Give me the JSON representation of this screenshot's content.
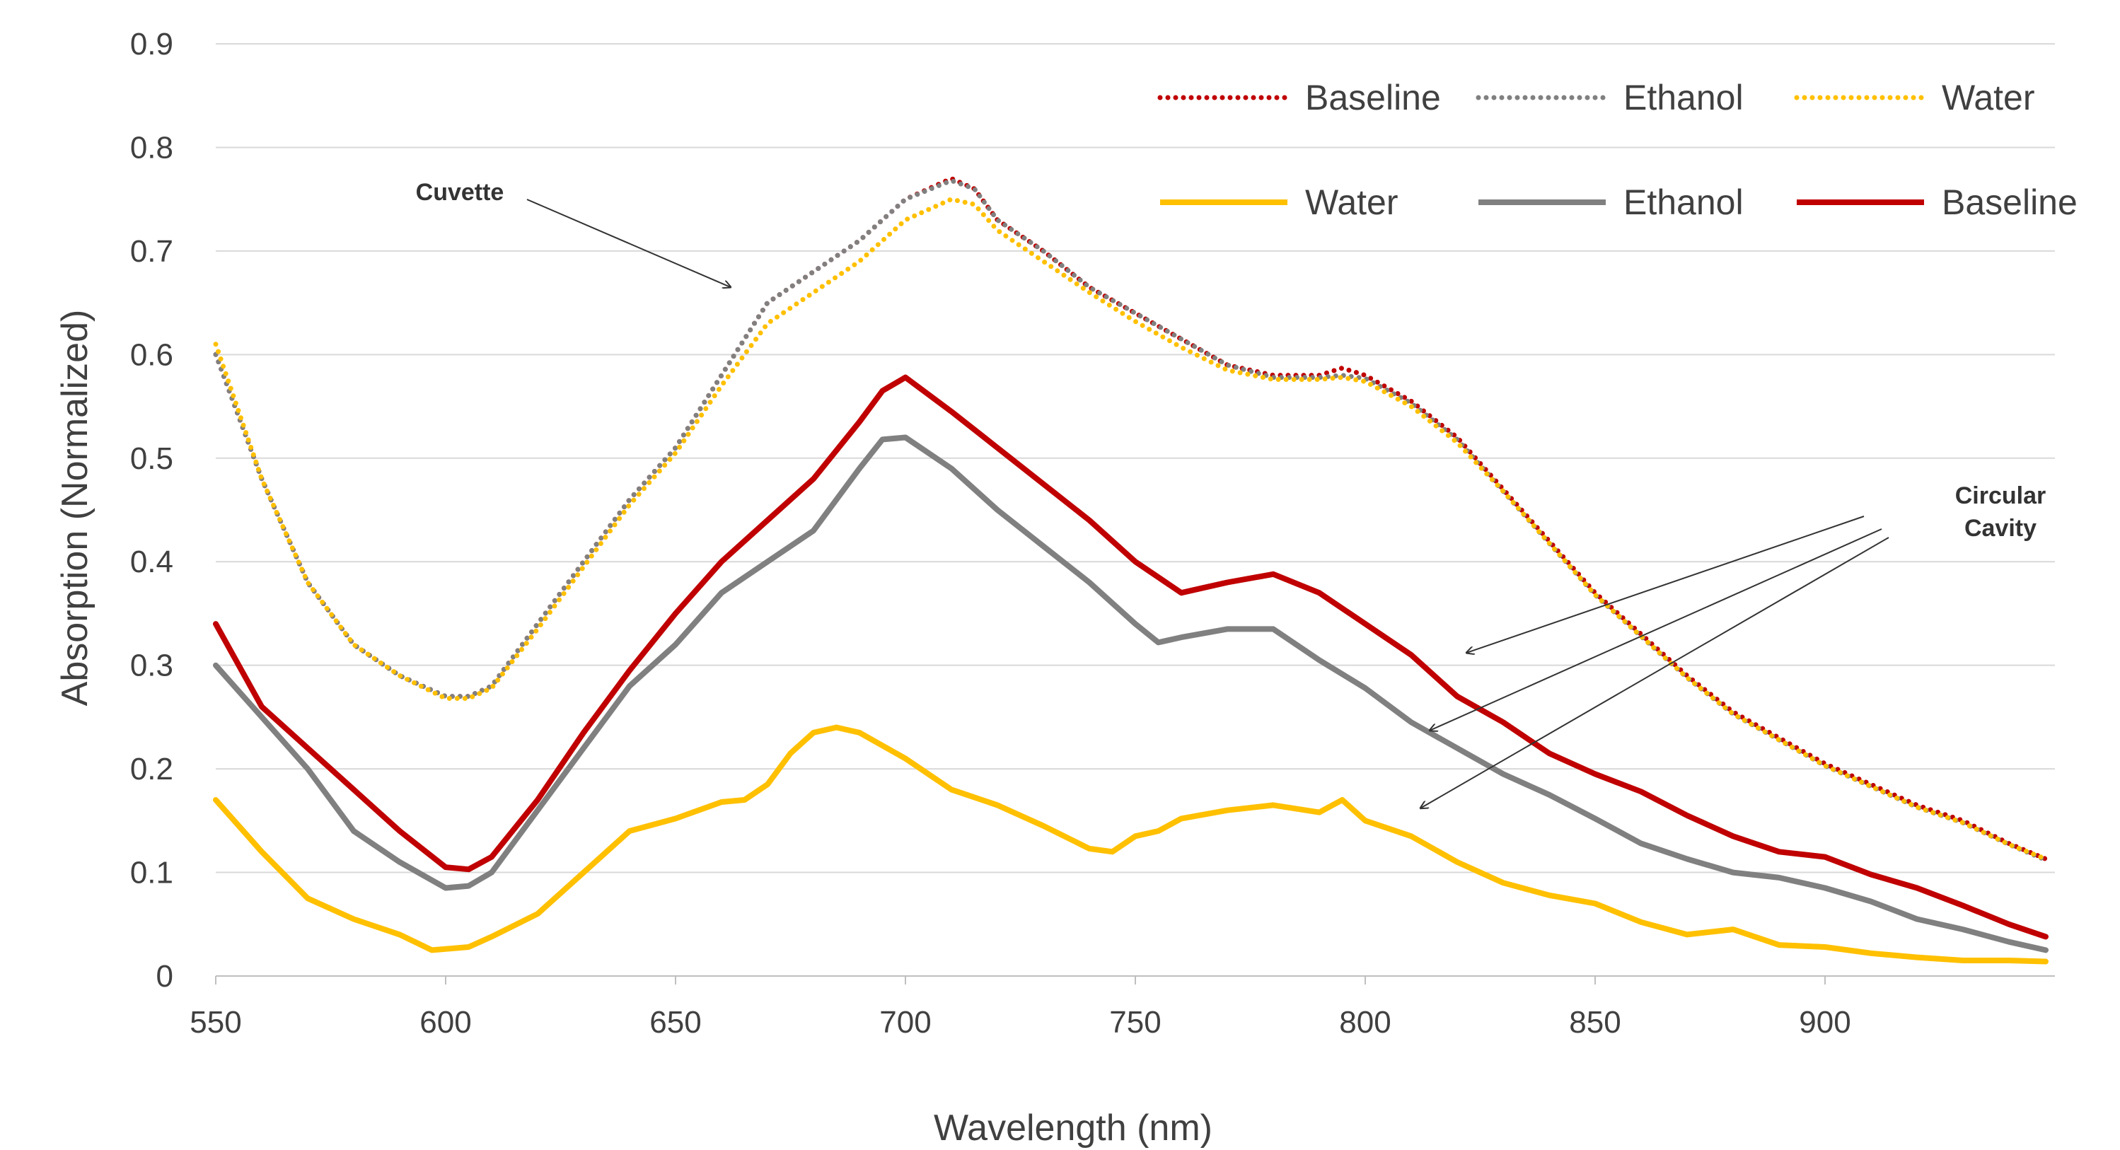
{
  "chart_data": {
    "type": "line",
    "title": "",
    "xlabel": "Wavelength (nm)",
    "ylabel": "Absorption (Normalized)",
    "xlim": [
      550,
      950
    ],
    "ylim": [
      0,
      0.9
    ],
    "xticks": [
      550,
      600,
      650,
      700,
      750,
      800,
      850,
      900
    ],
    "xtick_labels": [
      "550",
      "600",
      "650",
      "700",
      "750",
      "800",
      "850",
      "900"
    ],
    "yticks": [
      0,
      0.1,
      0.2,
      0.3,
      0.4,
      0.5,
      0.6,
      0.7,
      0.8,
      0.9
    ],
    "ytick_labels": [
      "0",
      "0.1",
      "0.2",
      "0.3",
      "0.4",
      "0.5",
      "0.6",
      "0.7",
      "0.8",
      "0.9"
    ],
    "grid": "horizontal",
    "legend": "top-right",
    "series": [
      {
        "name": "Baseline",
        "group": "Cuvette",
        "style": "dotted",
        "color": "#C00000",
        "x": [
          550,
          560,
          570,
          580,
          590,
          600,
          605,
          610,
          620,
          630,
          640,
          650,
          660,
          670,
          680,
          690,
          700,
          710,
          715,
          720,
          730,
          740,
          750,
          760,
          770,
          780,
          790,
          795,
          800,
          810,
          820,
          830,
          840,
          850,
          860,
          870,
          880,
          890,
          900,
          910,
          920,
          930,
          940,
          948
        ],
        "y": [
          0.6,
          0.48,
          0.38,
          0.32,
          0.29,
          0.27,
          0.27,
          0.28,
          0.34,
          0.4,
          0.46,
          0.51,
          0.58,
          0.65,
          0.68,
          0.71,
          0.75,
          0.77,
          0.76,
          0.73,
          0.7,
          0.665,
          0.64,
          0.615,
          0.59,
          0.58,
          0.58,
          0.587,
          0.58,
          0.555,
          0.52,
          0.47,
          0.42,
          0.37,
          0.33,
          0.29,
          0.255,
          0.23,
          0.205,
          0.185,
          0.165,
          0.15,
          0.128,
          0.113
        ]
      },
      {
        "name": "Ethanol",
        "group": "Cuvette",
        "style": "dotted",
        "color": "#808080",
        "x": [
          550,
          560,
          570,
          580,
          590,
          600,
          605,
          610,
          620,
          630,
          640,
          650,
          660,
          670,
          680,
          690,
          700,
          710,
          715,
          720,
          730,
          740,
          750,
          760,
          770,
          780,
          790,
          795,
          800,
          810,
          820,
          830,
          840,
          850,
          860,
          870,
          880,
          890,
          900,
          910,
          920,
          930,
          940,
          948
        ],
        "y": [
          0.6,
          0.48,
          0.38,
          0.32,
          0.29,
          0.27,
          0.27,
          0.28,
          0.34,
          0.4,
          0.46,
          0.51,
          0.58,
          0.65,
          0.68,
          0.71,
          0.75,
          0.768,
          0.76,
          0.73,
          0.7,
          0.665,
          0.64,
          0.615,
          0.59,
          0.578,
          0.578,
          0.58,
          0.577,
          0.553,
          0.518,
          0.468,
          0.418,
          0.368,
          0.328,
          0.288,
          0.253,
          0.228,
          0.203,
          0.183,
          0.163,
          0.148,
          0.127,
          0.112
        ]
      },
      {
        "name": "Water",
        "group": "Cuvette",
        "style": "dotted",
        "color": "#FFC000",
        "x": [
          550,
          560,
          570,
          580,
          590,
          600,
          605,
          610,
          620,
          630,
          640,
          650,
          660,
          670,
          680,
          690,
          700,
          710,
          715,
          720,
          730,
          740,
          750,
          760,
          770,
          780,
          790,
          795,
          800,
          810,
          820,
          830,
          840,
          850,
          860,
          870,
          880,
          890,
          900,
          910,
          920,
          930,
          940,
          948
        ],
        "y": [
          0.61,
          0.48,
          0.38,
          0.32,
          0.29,
          0.268,
          0.268,
          0.278,
          0.335,
          0.395,
          0.455,
          0.505,
          0.57,
          0.63,
          0.66,
          0.69,
          0.73,
          0.75,
          0.745,
          0.72,
          0.69,
          0.66,
          0.632,
          0.607,
          0.585,
          0.576,
          0.576,
          0.578,
          0.574,
          0.55,
          0.515,
          0.468,
          0.418,
          0.368,
          0.328,
          0.288,
          0.253,
          0.228,
          0.203,
          0.183,
          0.163,
          0.148,
          0.127,
          0.113
        ]
      },
      {
        "name": "Water",
        "group": "Circular Cavity",
        "style": "solid",
        "color": "#FFC000",
        "x": [
          550,
          560,
          570,
          580,
          590,
          597,
          605,
          610,
          620,
          630,
          640,
          650,
          660,
          665,
          670,
          675,
          680,
          685,
          690,
          700,
          710,
          720,
          730,
          740,
          745,
          750,
          755,
          760,
          770,
          780,
          790,
          795,
          800,
          810,
          820,
          830,
          840,
          850,
          860,
          870,
          880,
          890,
          900,
          910,
          920,
          930,
          940,
          948
        ],
        "y": [
          0.17,
          0.12,
          0.075,
          0.055,
          0.04,
          0.025,
          0.028,
          0.038,
          0.06,
          0.1,
          0.14,
          0.152,
          0.168,
          0.17,
          0.185,
          0.215,
          0.235,
          0.24,
          0.235,
          0.21,
          0.18,
          0.165,
          0.145,
          0.123,
          0.12,
          0.135,
          0.14,
          0.152,
          0.16,
          0.165,
          0.158,
          0.17,
          0.15,
          0.135,
          0.11,
          0.09,
          0.078,
          0.07,
          0.052,
          0.04,
          0.045,
          0.03,
          0.028,
          0.022,
          0.018,
          0.015,
          0.015,
          0.014
        ]
      },
      {
        "name": "Ethanol",
        "group": "Circular Cavity",
        "style": "solid",
        "color": "#808080",
        "x": [
          550,
          560,
          570,
          580,
          590,
          600,
          605,
          610,
          620,
          630,
          640,
          650,
          660,
          670,
          680,
          690,
          695,
          700,
          710,
          720,
          730,
          740,
          750,
          755,
          760,
          770,
          780,
          790,
          800,
          810,
          820,
          830,
          840,
          850,
          860,
          870,
          880,
          890,
          900,
          910,
          920,
          930,
          940,
          948
        ],
        "y": [
          0.3,
          0.25,
          0.2,
          0.14,
          0.11,
          0.085,
          0.087,
          0.1,
          0.16,
          0.22,
          0.28,
          0.32,
          0.37,
          0.4,
          0.43,
          0.49,
          0.518,
          0.52,
          0.49,
          0.45,
          0.415,
          0.38,
          0.34,
          0.322,
          0.327,
          0.335,
          0.335,
          0.305,
          0.278,
          0.245,
          0.22,
          0.195,
          0.175,
          0.152,
          0.128,
          0.113,
          0.1,
          0.095,
          0.085,
          0.072,
          0.055,
          0.045,
          0.033,
          0.025
        ]
      },
      {
        "name": "Baseline",
        "group": "Circular Cavity",
        "style": "solid",
        "color": "#C00000",
        "x": [
          550,
          560,
          570,
          580,
          590,
          600,
          605,
          610,
          620,
          630,
          640,
          650,
          660,
          670,
          680,
          690,
          695,
          700,
          710,
          720,
          730,
          740,
          750,
          760,
          765,
          770,
          780,
          790,
          800,
          810,
          820,
          830,
          840,
          850,
          860,
          870,
          880,
          890,
          900,
          910,
          920,
          930,
          940,
          948
        ],
        "y": [
          0.34,
          0.26,
          0.22,
          0.18,
          0.14,
          0.105,
          0.103,
          0.115,
          0.17,
          0.235,
          0.295,
          0.35,
          0.4,
          0.44,
          0.48,
          0.535,
          0.565,
          0.578,
          0.545,
          0.51,
          0.475,
          0.44,
          0.4,
          0.37,
          0.375,
          0.38,
          0.388,
          0.37,
          0.34,
          0.31,
          0.27,
          0.245,
          0.215,
          0.195,
          0.178,
          0.155,
          0.135,
          0.12,
          0.115,
          0.098,
          0.085,
          0.068,
          0.05,
          0.038
        ]
      }
    ],
    "legend_entries": [
      {
        "label": "Baseline",
        "style": "dotted",
        "color": "#C00000"
      },
      {
        "label": "Ethanol",
        "style": "dotted",
        "color": "#808080"
      },
      {
        "label": "Water",
        "style": "dotted",
        "color": "#FFC000"
      },
      {
        "label": "Water",
        "style": "solid",
        "color": "#FFC000"
      },
      {
        "label": "Ethanol",
        "style": "solid",
        "color": "#808080"
      },
      {
        "label": "Baseline",
        "style": "solid",
        "color": "#C00000"
      }
    ],
    "annotations": [
      {
        "label": "Cuvette",
        "lines": [
          "Cuvette"
        ],
        "points_to": [
          [
            662,
            0.665
          ]
        ]
      },
      {
        "label": "Circular Cavity",
        "lines": [
          "Circular",
          "Cavity"
        ],
        "points_to": [
          [
            822,
            0.312
          ],
          [
            814,
            0.237
          ],
          [
            812,
            0.162
          ]
        ]
      }
    ]
  }
}
